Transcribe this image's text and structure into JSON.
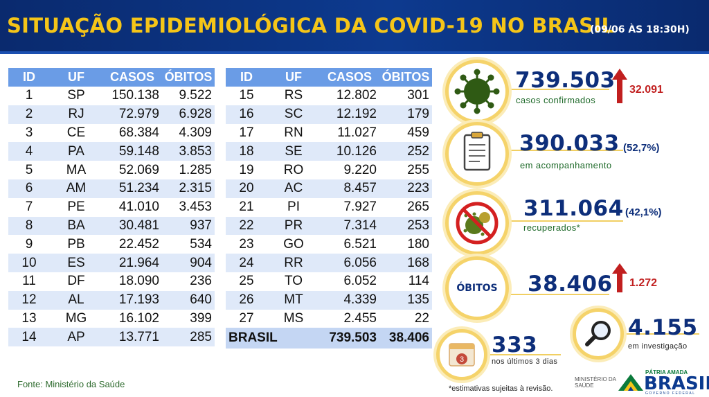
{
  "header": {
    "title": "SITUAÇÃO EPIDEMIOLÓGICA DA COVID-19 NO BRASIL",
    "date": "(09/06 ÀS 18:30H)"
  },
  "table_headers": [
    "ID",
    "UF",
    "CASOS",
    "ÓBITOS"
  ],
  "states_left": [
    {
      "id": "1",
      "uf": "SP",
      "casos": "150.138",
      "obitos": "9.522"
    },
    {
      "id": "2",
      "uf": "RJ",
      "casos": "72.979",
      "obitos": "6.928"
    },
    {
      "id": "3",
      "uf": "CE",
      "casos": "68.384",
      "obitos": "4.309"
    },
    {
      "id": "4",
      "uf": "PA",
      "casos": "59.148",
      "obitos": "3.853"
    },
    {
      "id": "5",
      "uf": "MA",
      "casos": "52.069",
      "obitos": "1.285"
    },
    {
      "id": "6",
      "uf": "AM",
      "casos": "51.234",
      "obitos": "2.315"
    },
    {
      "id": "7",
      "uf": "PE",
      "casos": "41.010",
      "obitos": "3.453"
    },
    {
      "id": "8",
      "uf": "BA",
      "casos": "30.481",
      "obitos": "937"
    },
    {
      "id": "9",
      "uf": "PB",
      "casos": "22.452",
      "obitos": "534"
    },
    {
      "id": "10",
      "uf": "ES",
      "casos": "21.964",
      "obitos": "904"
    },
    {
      "id": "11",
      "uf": "DF",
      "casos": "18.090",
      "obitos": "236"
    },
    {
      "id": "12",
      "uf": "AL",
      "casos": "17.193",
      "obitos": "640"
    },
    {
      "id": "13",
      "uf": "MG",
      "casos": "16.102",
      "obitos": "399"
    },
    {
      "id": "14",
      "uf": "AP",
      "casos": "13.771",
      "obitos": "285"
    }
  ],
  "states_right": [
    {
      "id": "15",
      "uf": "RS",
      "casos": "12.802",
      "obitos": "301"
    },
    {
      "id": "16",
      "uf": "SC",
      "casos": "12.192",
      "obitos": "179"
    },
    {
      "id": "17",
      "uf": "RN",
      "casos": "11.027",
      "obitos": "459"
    },
    {
      "id": "18",
      "uf": "SE",
      "casos": "10.126",
      "obitos": "252"
    },
    {
      "id": "19",
      "uf": "RO",
      "casos": "9.220",
      "obitos": "255"
    },
    {
      "id": "20",
      "uf": "AC",
      "casos": "8.457",
      "obitos": "223"
    },
    {
      "id": "21",
      "uf": "PI",
      "casos": "7.927",
      "obitos": "265"
    },
    {
      "id": "22",
      "uf": "PR",
      "casos": "7.314",
      "obitos": "253"
    },
    {
      "id": "23",
      "uf": "GO",
      "casos": "6.521",
      "obitos": "180"
    },
    {
      "id": "24",
      "uf": "RR",
      "casos": "6.056",
      "obitos": "168"
    },
    {
      "id": "25",
      "uf": "TO",
      "casos": "6.052",
      "obitos": "114"
    },
    {
      "id": "26",
      "uf": "MT",
      "casos": "4.339",
      "obitos": "135"
    },
    {
      "id": "27",
      "uf": "MS",
      "casos": "2.455",
      "obitos": "22"
    }
  ],
  "total": {
    "label": "BRASIL",
    "casos": "739.503",
    "obitos": "38.406"
  },
  "stats": {
    "confirmados": {
      "value": "739.503",
      "label": "casos confirmados",
      "increase": "32.091",
      "icon": "virus-icon"
    },
    "acompanhamento": {
      "value": "390.033",
      "pct": "(52,7%)",
      "label": "em acompanhamento",
      "icon": "clipboard-icon"
    },
    "recuperados": {
      "value": "311.064",
      "pct": "(42,1%)",
      "label": "recuperados*",
      "icon": "no-virus-icon"
    },
    "obitos": {
      "label": "ÓBITOS",
      "value": "38.406",
      "increase": "1.272"
    },
    "ultimos": {
      "value": "333",
      "label": "nos últimos 3 dias",
      "calendar_number": "3",
      "icon": "calendar-icon"
    },
    "investigacao": {
      "value": "4.155",
      "label": "em investigação",
      "icon": "magnifier-icon"
    }
  },
  "source": "Fonte: Ministério da Saúde",
  "note": "*estimativas sujeitas à revisão.",
  "logos": {
    "ministerio": [
      "MINISTÉRIO DA",
      "SAÚDE"
    ],
    "patria": "PÁTRIA AMADA",
    "brasil": "BRASIL",
    "governo": "GOVERNO FEDERAL"
  },
  "colors": {
    "header_bg": "#0a2a6e",
    "title": "#f5c518",
    "table_header": "#6a9ce6",
    "alt_row": "#dfe9f9",
    "stat_value": "#0d2e7a",
    "increase": "#c11f1f",
    "circle_border": "#f5d36a"
  }
}
